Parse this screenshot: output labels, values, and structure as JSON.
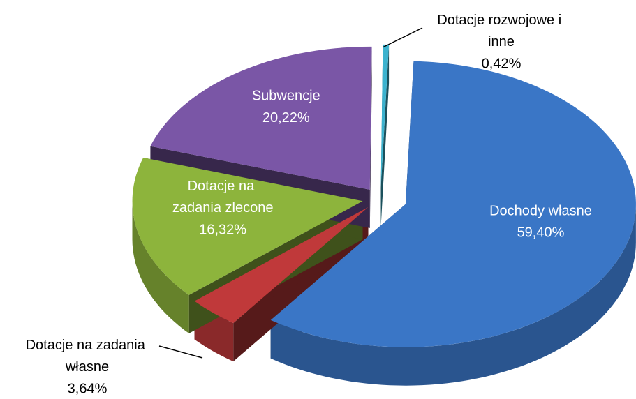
{
  "chart_data": {
    "type": "pie",
    "categories": [
      "Dochody własne",
      "Dotacje na zadania własne",
      "Dotacje na zadania zlecone",
      "Subwencje",
      "Dotacje rozwojowe i inne"
    ],
    "values": [
      59.4,
      3.64,
      16.32,
      20.22,
      0.42
    ],
    "value_labels": [
      "59,40%",
      "3,64%",
      "16,32%",
      "20,22%",
      "0,42%"
    ],
    "colors": [
      "#3a76c6",
      "#c0393a",
      "#8db43c",
      "#7a56a6",
      "#3cb3cf"
    ]
  }
}
